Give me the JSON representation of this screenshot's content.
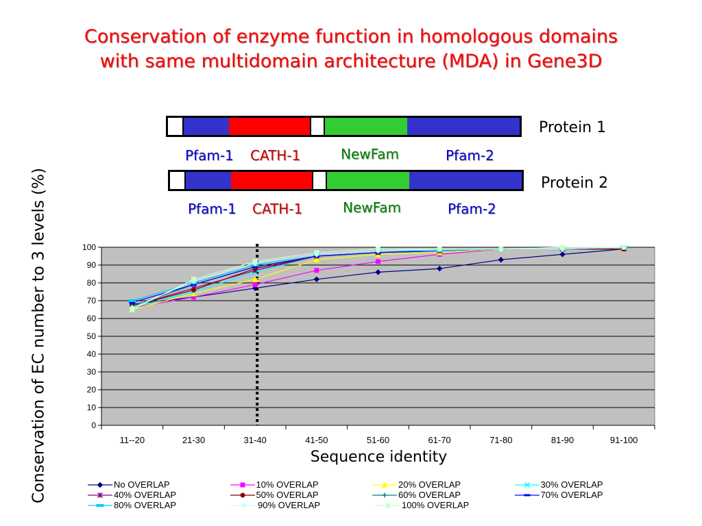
{
  "title": {
    "line1": "Conservation of enzyme function in homologous domains",
    "line2": "with same multidomain architecture (MDA) in Gene3D"
  },
  "proteins": [
    {
      "name": "Protein 1",
      "labels": {
        "pfam1": "Pfam-1",
        "cath1": "CATH-1",
        "newfam": "NewFam",
        "pfam2": "Pfam-2"
      }
    },
    {
      "name": "Protein 2",
      "labels": {
        "pfam1": "Pfam-1",
        "cath1": "CATH-1",
        "newfam": "NewFam",
        "pfam2": "Pfam-2"
      }
    }
  ],
  "colors": {
    "title": "#ff0000",
    "pfam": "#3333cc",
    "cath": "#ff0000",
    "newfam": "#33cc33",
    "plot_background": "#c0c0c0",
    "cutoff_line": "#000000"
  },
  "chart_data": {
    "type": "line",
    "xlabel": "Sequence identity",
    "ylabel": "Conservation of EC number to 3 levels (%)",
    "categories": [
      "11--20",
      "21-30",
      "31-40",
      "41-50",
      "51-60",
      "61-70",
      "71-80",
      "81-90",
      "91-100"
    ],
    "ylim": [
      0,
      100
    ],
    "yticks": [
      0,
      10,
      20,
      30,
      40,
      50,
      60,
      70,
      80,
      90,
      100
    ],
    "grid": "horizontal",
    "legend_position": "bottom",
    "cutoff_category": "31-40",
    "series": [
      {
        "name": "No OVERLAP",
        "color": "#000080",
        "marker": "diamond",
        "values": [
          68,
          72,
          77,
          82,
          86,
          88,
          93,
          96,
          99
        ]
      },
      {
        "name": "10% OVERLAP",
        "color": "#ff00ff",
        "marker": "square",
        "values": [
          66,
          72,
          79,
          87,
          92,
          96,
          99,
          99,
          99
        ]
      },
      {
        "name": "20% OVERLAP",
        "color": "#ffff00",
        "marker": "triangle",
        "values": [
          65,
          74,
          82,
          93,
          96,
          97,
          99,
          99,
          99
        ]
      },
      {
        "name": "30% OVERLAP",
        "color": "#00ffff",
        "marker": "x",
        "values": [
          66,
          75,
          86,
          95,
          97,
          98,
          99,
          99,
          99
        ]
      },
      {
        "name": "40% OVERLAP",
        "color": "#800080",
        "marker": "star",
        "values": [
          67,
          77,
          87,
          95,
          97,
          98,
          99,
          99,
          99
        ]
      },
      {
        "name": "50% OVERLAP",
        "color": "#800000",
        "marker": "circle",
        "values": [
          67,
          76,
          88,
          95,
          97,
          98,
          99,
          99,
          99
        ]
      },
      {
        "name": "60% OVERLAP",
        "color": "#008080",
        "marker": "plus",
        "values": [
          67,
          79,
          89,
          95,
          97,
          98,
          99,
          99,
          100
        ]
      },
      {
        "name": "70% OVERLAP",
        "color": "#0000ff",
        "marker": "dash",
        "values": [
          69,
          79,
          89,
          95,
          97,
          98,
          99,
          99,
          100
        ]
      },
      {
        "name": "80% OVERLAP",
        "color": "#00ccff",
        "marker": "bar",
        "values": [
          70,
          80,
          90,
          96,
          98,
          98,
          99,
          99,
          100
        ]
      },
      {
        "name": "90% OVERLAP",
        "color": "#ccffff",
        "marker": "diamond",
        "values": [
          66,
          81,
          91,
          96,
          98,
          99,
          99,
          99,
          100
        ]
      },
      {
        "name": "100% OVERLAP",
        "color": "#ccffcc",
        "marker": "square",
        "values": [
          65,
          82,
          92,
          97,
          99,
          99,
          99,
          100,
          100
        ]
      }
    ]
  }
}
